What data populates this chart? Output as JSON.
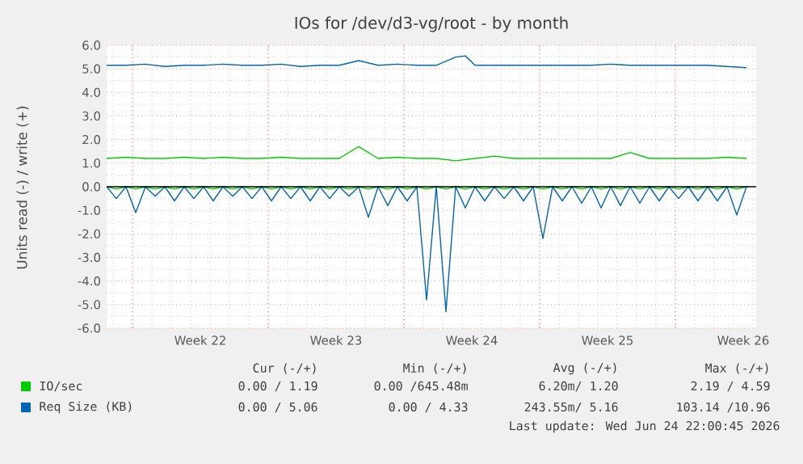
{
  "chart_data": {
    "type": "line",
    "title": "IOs for /dev/d3-vg/root - by month",
    "ylabel": "Units read (-) / write (+)",
    "xlim": [
      "2026-05-22T16:00",
      "2026-06-25T04:00"
    ],
    "ylim": [
      -6,
      6
    ],
    "xticks": [
      {
        "value": "2026-05-24",
        "label": null
      },
      {
        "value": "2026-05-27T12:00",
        "label": "Week 22"
      },
      {
        "value": "2026-05-31",
        "label": null
      },
      {
        "value": "2026-06-03T12:00",
        "label": "Week 23"
      },
      {
        "value": "2026-06-07",
        "label": null
      },
      {
        "value": "2026-06-10T12:00",
        "label": "Week 24"
      },
      {
        "value": "2026-06-14",
        "label": null
      },
      {
        "value": "2026-06-17T12:00",
        "label": "Week 25"
      },
      {
        "value": "2026-06-21",
        "label": null
      },
      {
        "value": "2026-06-24T12:00",
        "label": "Week 26"
      }
    ],
    "yticks": [
      {
        "value": -6,
        "label": "-6.0"
      },
      {
        "value": -5,
        "label": "-5.0"
      },
      {
        "value": -4,
        "label": "-4.0"
      },
      {
        "value": -3,
        "label": "-3.0"
      },
      {
        "value": -2,
        "label": "-2.0"
      },
      {
        "value": -1,
        "label": "-1.0"
      },
      {
        "value": 0,
        "label": "0.0"
      },
      {
        "value": 1,
        "label": "1.0"
      },
      {
        "value": 2,
        "label": "2.0"
      },
      {
        "value": 3,
        "label": "3.0"
      },
      {
        "value": 4,
        "label": "4.0"
      },
      {
        "value": 5,
        "label": "5.0"
      },
      {
        "value": 6,
        "label": "6.0"
      }
    ],
    "grid": true,
    "legend": "bottom",
    "ref_lines": [
      {
        "axis": "y",
        "value": 0,
        "color": "#000000"
      }
    ],
    "series": [
      {
        "name": "IO/sec",
        "color": "#00cc00",
        "x": [
          "2026-05-22T16:00",
          "2026-05-23T16:00",
          "2026-05-24T16:00",
          "2026-05-25T16:00",
          "2026-05-26T16:00",
          "2026-05-27T16:00",
          "2026-05-28T16:00",
          "2026-05-29T16:00",
          "2026-05-30T16:00",
          "2026-05-31T16:00",
          "2026-06-01T16:00",
          "2026-06-02T16:00",
          "2026-06-03T16:00",
          "2026-06-04T16:00",
          "2026-06-05T16:00",
          "2026-06-06T16:00",
          "2026-06-07T16:00",
          "2026-06-08T16:00",
          "2026-06-09T16:00",
          "2026-06-10T16:00",
          "2026-06-11T16:00",
          "2026-06-12T16:00",
          "2026-06-13T16:00",
          "2026-06-14T16:00",
          "2026-06-15T16:00",
          "2026-06-16T16:00",
          "2026-06-17T16:00",
          "2026-06-18T16:00",
          "2026-06-19T16:00",
          "2026-06-20T16:00",
          "2026-06-21T16:00",
          "2026-06-22T16:00",
          "2026-06-23T16:00",
          "2026-06-24T16:00"
        ],
        "values": [
          1.2,
          1.25,
          1.2,
          1.2,
          1.25,
          1.2,
          1.25,
          1.2,
          1.2,
          1.25,
          1.2,
          1.2,
          1.2,
          1.7,
          1.2,
          1.25,
          1.2,
          1.2,
          1.1,
          1.2,
          1.3,
          1.2,
          1.2,
          1.2,
          1.2,
          1.2,
          1.2,
          1.45,
          1.2,
          1.2,
          1.2,
          1.2,
          1.25,
          1.2
        ]
      },
      {
        "color": "#00cc00",
        "x": [
          "2026-05-22T16:00",
          "2026-05-23T04:00",
          "2026-05-23T16:00",
          "2026-05-24T04:00",
          "2026-05-24T16:00",
          "2026-05-25T04:00",
          "2026-05-25T16:00",
          "2026-05-26T04:00",
          "2026-05-26T16:00",
          "2026-05-27T04:00",
          "2026-05-27T16:00",
          "2026-05-28T04:00",
          "2026-05-28T16:00",
          "2026-05-29T04:00",
          "2026-05-29T16:00",
          "2026-05-30T04:00",
          "2026-05-30T16:00",
          "2026-05-31T04:00",
          "2026-05-31T16:00",
          "2026-06-01T04:00",
          "2026-06-01T16:00",
          "2026-06-02T04:00",
          "2026-06-02T16:00",
          "2026-06-03T04:00",
          "2026-06-03T16:00",
          "2026-06-04T04:00",
          "2026-06-04T16:00",
          "2026-06-05T04:00",
          "2026-06-05T16:00",
          "2026-06-06T04:00",
          "2026-06-06T16:00",
          "2026-06-07T04:00",
          "2026-06-07T16:00",
          "2026-06-08T04:00",
          "2026-06-08T16:00",
          "2026-06-09T04:00",
          "2026-06-09T16:00",
          "2026-06-10T04:00",
          "2026-06-10T16:00",
          "2026-06-11T04:00",
          "2026-06-11T16:00",
          "2026-06-12T04:00",
          "2026-06-12T16:00",
          "2026-06-13T04:00",
          "2026-06-13T16:00",
          "2026-06-14T04:00",
          "2026-06-14T16:00",
          "2026-06-15T04:00",
          "2026-06-15T16:00",
          "2026-06-16T04:00",
          "2026-06-16T16:00",
          "2026-06-17T04:00",
          "2026-06-17T16:00",
          "2026-06-18T04:00",
          "2026-06-18T16:00",
          "2026-06-19T04:00",
          "2026-06-19T16:00",
          "2026-06-20T04:00",
          "2026-06-20T16:00",
          "2026-06-21T04:00",
          "2026-06-21T16:00",
          "2026-06-22T04:00",
          "2026-06-22T16:00",
          "2026-06-23T04:00",
          "2026-06-23T16:00",
          "2026-06-24T04:00",
          "2026-06-24T16:00"
        ],
        "values": [
          0,
          -0.1,
          0,
          -0.1,
          0,
          -0.1,
          0,
          -0.1,
          0,
          -0.1,
          0,
          -0.1,
          0,
          -0.1,
          0,
          -0.1,
          0,
          -0.1,
          0,
          -0.1,
          0,
          -0.1,
          0,
          -0.1,
          0,
          -0.1,
          0,
          -0.1,
          0,
          -0.1,
          0,
          -0.1,
          0,
          -0.1,
          0,
          -0.1,
          0,
          -0.1,
          0,
          -0.1,
          0,
          -0.1,
          0,
          -0.1,
          0,
          -0.1,
          0,
          -0.1,
          0,
          -0.1,
          0,
          -0.1,
          0,
          -0.1,
          0,
          -0.1,
          0,
          -0.1,
          0,
          -0.1,
          0,
          -0.1,
          0,
          -0.1,
          0,
          -0.1,
          0
        ]
      },
      {
        "name": "Req Size (KB)",
        "color": "#0066b3",
        "x": [
          "2026-05-22T16:00",
          "2026-05-23T16:00",
          "2026-05-24T16:00",
          "2026-05-25T16:00",
          "2026-05-26T16:00",
          "2026-05-27T16:00",
          "2026-05-28T16:00",
          "2026-05-29T16:00",
          "2026-05-30T16:00",
          "2026-05-31T16:00",
          "2026-06-01T16:00",
          "2026-06-02T16:00",
          "2026-06-03T16:00",
          "2026-06-04T16:00",
          "2026-06-05T16:00",
          "2026-06-06T16:00",
          "2026-06-07T16:00",
          "2026-06-08T16:00",
          "2026-06-09T16:00",
          "2026-06-10T04:00",
          "2026-06-10T16:00",
          "2026-06-11T16:00",
          "2026-06-12T16:00",
          "2026-06-13T16:00",
          "2026-06-14T16:00",
          "2026-06-15T16:00",
          "2026-06-16T16:00",
          "2026-06-17T16:00",
          "2026-06-18T16:00",
          "2026-06-19T16:00",
          "2026-06-20T16:00",
          "2026-06-21T16:00",
          "2026-06-22T16:00",
          "2026-06-23T16:00",
          "2026-06-24T16:00"
        ],
        "values": [
          5.15,
          5.15,
          5.2,
          5.1,
          5.15,
          5.15,
          5.2,
          5.15,
          5.15,
          5.2,
          5.1,
          5.15,
          5.15,
          5.35,
          5.15,
          5.2,
          5.15,
          5.15,
          5.5,
          5.55,
          5.15,
          5.15,
          5.15,
          5.15,
          5.15,
          5.15,
          5.15,
          5.2,
          5.15,
          5.15,
          5.15,
          5.15,
          5.15,
          5.1,
          5.05
        ]
      },
      {
        "color": "#0066b3",
        "x": [
          "2026-05-22T16:00",
          "2026-05-23T04:00",
          "2026-05-23T16:00",
          "2026-05-24T04:00",
          "2026-05-24T16:00",
          "2026-05-25T04:00",
          "2026-05-25T16:00",
          "2026-05-26T04:00",
          "2026-05-26T16:00",
          "2026-05-27T04:00",
          "2026-05-27T16:00",
          "2026-05-28T04:00",
          "2026-05-28T16:00",
          "2026-05-29T04:00",
          "2026-05-29T16:00",
          "2026-05-30T04:00",
          "2026-05-30T16:00",
          "2026-05-31T04:00",
          "2026-05-31T16:00",
          "2026-06-01T04:00",
          "2026-06-01T16:00",
          "2026-06-02T04:00",
          "2026-06-02T16:00",
          "2026-06-03T04:00",
          "2026-06-03T16:00",
          "2026-06-04T04:00",
          "2026-06-04T16:00",
          "2026-06-05T04:00",
          "2026-06-05T16:00",
          "2026-06-06T04:00",
          "2026-06-06T16:00",
          "2026-06-07T04:00",
          "2026-06-07T16:00",
          "2026-06-08T04:00",
          "2026-06-08T16:00",
          "2026-06-09T04:00",
          "2026-06-09T16:00",
          "2026-06-10T04:00",
          "2026-06-10T16:00",
          "2026-06-11T04:00",
          "2026-06-11T16:00",
          "2026-06-12T04:00",
          "2026-06-12T16:00",
          "2026-06-13T04:00",
          "2026-06-13T16:00",
          "2026-06-14T04:00",
          "2026-06-14T16:00",
          "2026-06-15T04:00",
          "2026-06-15T16:00",
          "2026-06-16T04:00",
          "2026-06-16T16:00",
          "2026-06-17T04:00",
          "2026-06-17T16:00",
          "2026-06-18T04:00",
          "2026-06-18T16:00",
          "2026-06-19T04:00",
          "2026-06-19T16:00",
          "2026-06-20T04:00",
          "2026-06-20T16:00",
          "2026-06-21T04:00",
          "2026-06-21T16:00",
          "2026-06-22T04:00",
          "2026-06-22T16:00",
          "2026-06-23T04:00",
          "2026-06-23T16:00",
          "2026-06-24T04:00",
          "2026-06-24T16:00"
        ],
        "values": [
          0,
          -0.5,
          0,
          -1.1,
          0,
          -0.4,
          0,
          -0.6,
          0,
          -0.5,
          0,
          -0.6,
          0,
          -0.4,
          0,
          -0.5,
          0,
          -0.6,
          0,
          -0.5,
          0,
          -0.6,
          0,
          -0.5,
          0,
          -0.4,
          0,
          -1.3,
          0,
          -0.8,
          0,
          -0.6,
          0,
          -4.8,
          0,
          -5.3,
          0,
          -0.9,
          0,
          -0.6,
          0,
          -0.5,
          0,
          -0.6,
          0,
          -2.2,
          0,
          -0.6,
          0,
          -0.7,
          0,
          -0.9,
          0,
          -0.8,
          0,
          -0.7,
          0,
          -0.6,
          0,
          -0.5,
          0,
          -0.6,
          0,
          -0.6,
          0,
          -1.2,
          0
        ]
      }
    ],
    "annotations": [
      "Cur (-/+)",
      "Min (-/+)",
      "Avg (-/+)",
      "Max (-/+)",
      "0.00 / 1.19",
      "0.00 /645.48m",
      "6.20m/ 1.20",
      "2.19 / 4.59",
      "0.00 / 5.06",
      "0.00 / 4.33",
      "243.55m/ 5.16",
      "103.14 /10.96",
      "Last update: Wed Jun 24 22:00:45 2026"
    ]
  }
}
